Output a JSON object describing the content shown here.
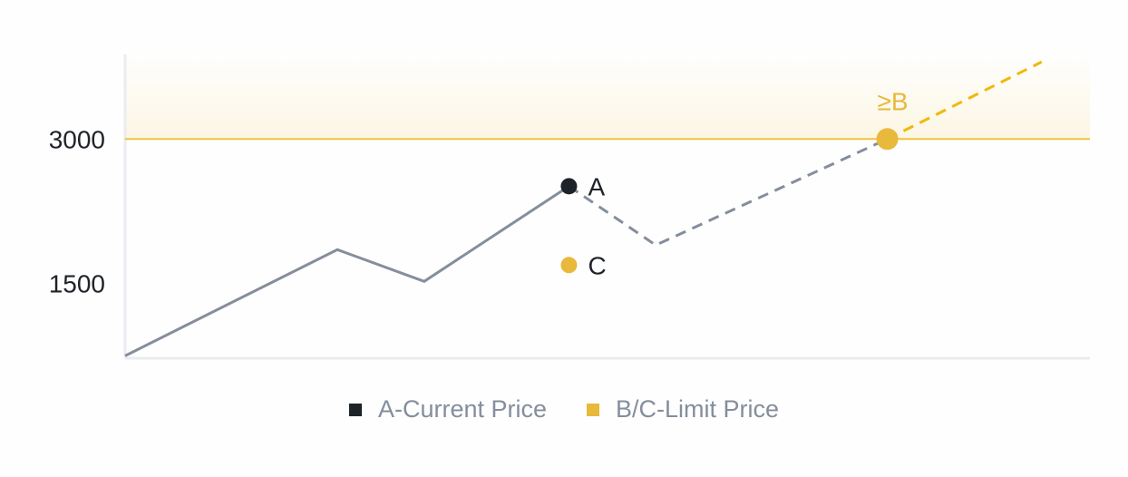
{
  "chart_data": {
    "type": "line",
    "title": "",
    "xlabel": "",
    "ylabel": "",
    "xlim": [
      0,
      100
    ],
    "ylim": [
      720,
      3880
    ],
    "yticks": [
      {
        "value": 3000,
        "label": "3000"
      },
      {
        "value": 1500,
        "label": "1500"
      }
    ],
    "grid": false,
    "limit_line": {
      "value": 3000,
      "color": "#f0c040",
      "zone_above_fill": "#fcf6e3"
    },
    "series": [
      {
        "style": "solid",
        "color": "#848e9c",
        "x": [
          0,
          22,
          31,
          46
        ],
        "y": [
          745,
          1849,
          1519,
          2509
        ]
      },
      {
        "style": "dashed",
        "color": "#848e9c",
        "x": [
          46,
          55,
          79
        ],
        "y": [
          2509,
          1896,
          3000
        ]
      },
      {
        "style": "dashed",
        "color": "#f0b90b",
        "x": [
          79,
          95
        ],
        "y": [
          3000,
          3802
        ]
      }
    ],
    "points": [
      {
        "label": "A",
        "x": 46,
        "y": 2509,
        "color": "#1e2329",
        "label_color": "#1e2329"
      },
      {
        "label": "C",
        "x": 46,
        "y": 1689,
        "color": "#e8b93a",
        "label_color": "#1e2329"
      },
      {
        "label": "≥B",
        "x": 79,
        "y": 3000,
        "color": "#e8b93a",
        "label_color": "#e8b93a",
        "label_pos": "above"
      }
    ],
    "legend": {
      "placement": "bottom",
      "entries": [
        {
          "label": "A-Current Price",
          "color": "#1e2329"
        },
        {
          "label": "B/C-Limit Price",
          "color": "#e8b93a"
        }
      ]
    }
  }
}
